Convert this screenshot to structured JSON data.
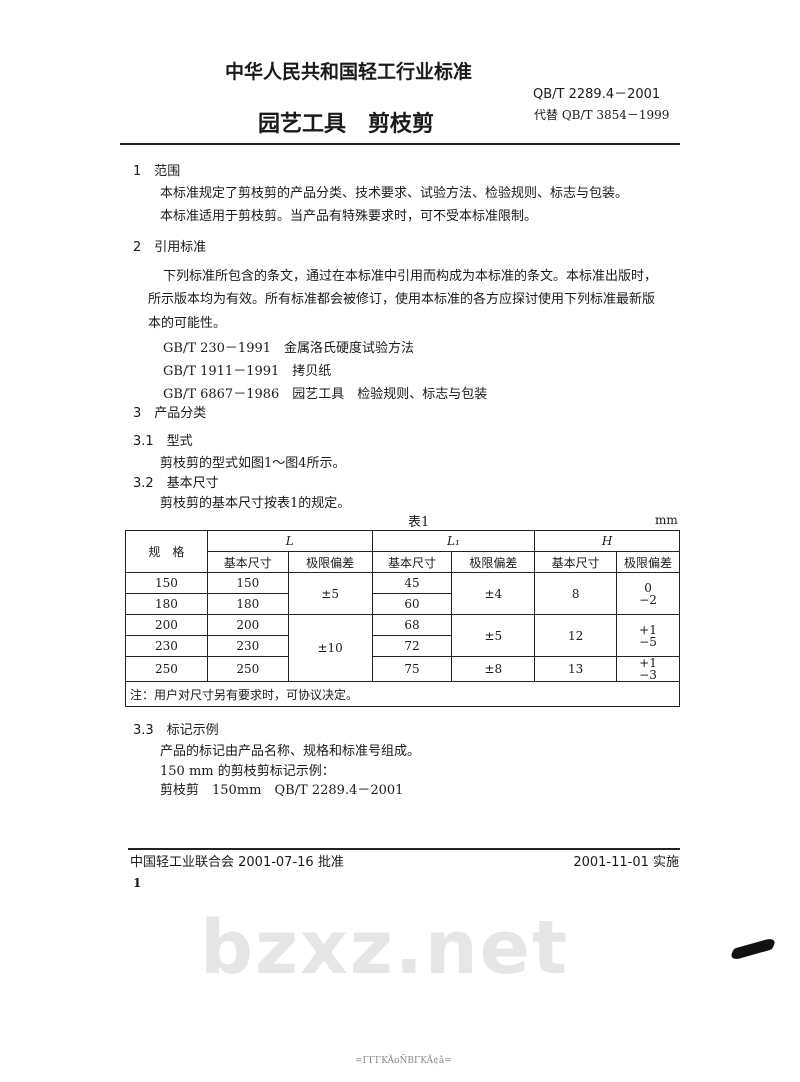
{
  "header": {
    "org_title": "中华人民共和国轻工行业标准",
    "std_no": "QB/T 2289.4－2001",
    "title": "园艺工具　剪枝剪",
    "replaces": "代替 QB/T 3854－1999",
    "watermark": "bzxz.net"
  },
  "s1": {
    "heading": "1　范围",
    "lines": [
      "本标准规定了剪枝剪的产品分类、技术要求、试验方法、检验规则、标志与包装。",
      "本标准适用于剪枝剪。当产品有特殊要求时，可不受本标准限制。"
    ]
  },
  "s2": {
    "heading": "2　引用标准",
    "lines": [
      "下列标准所包含的条文，通过在本标准中引用而构成为本标准的条文。本标准出版时，",
      "所示版本均为有效。所有标准都会被修订，使用本标准的各方应探讨使用下列标准最新版",
      "本的可能性。"
    ],
    "refs": [
      "GB/T 230－1991　金属洛氏硬度试验方法",
      "GB/T 1911－1991　拷贝纸",
      "GB/T 6867－1986　园艺工具　检验规则、标志与包装"
    ]
  },
  "s3": {
    "heading": "3　产品分类",
    "s31": "3.1　型式",
    "s31_text": "剪枝剪的型式如图1～图4所示。",
    "s32": "3.2　基本尺寸",
    "s32_text": "剪枝剪的基本尺寸按表1的规定。",
    "s33": "3.3　标记示例",
    "s33_lines": [
      "产品的标记由产品名称、规格和标准号组成。",
      "150 mm 的剪枝剪标记示例：",
      "剪枝剪　150mm　QB/T 2289.4－2001"
    ]
  },
  "table": {
    "caption": "表1",
    "unit": "mm",
    "spec": "规　格",
    "L": "L",
    "L1": "L₁",
    "H": "H",
    "basic": "基本尺寸",
    "tol": "极限偏差",
    "spec_vals": [
      "150",
      "180",
      "200",
      "230",
      "250"
    ],
    "L_vals": [
      "150",
      "180",
      "200",
      "230",
      "250"
    ],
    "L_tol": [
      "±5",
      "±10"
    ],
    "L1_vals": [
      "45",
      "60",
      "68",
      "72",
      "75"
    ],
    "L1_tol": [
      "±4",
      "±5",
      "±8"
    ],
    "H_vals": [
      "8",
      "12",
      "13"
    ],
    "H_tol": [
      [
        "0",
        "−2"
      ],
      [
        "+1",
        "−5"
      ],
      [
        "+1",
        "−3"
      ]
    ],
    "note": "注：用户对尺寸另有要求时，可协议决定。"
  },
  "footer": {
    "approved": "中国轻工业联合会 2001-07-16 批准",
    "effective": "2001-11-01 实施",
    "page": "1",
    "garbled": "=ΓΓΓKÃoÑΒΓKÃ¢ã="
  }
}
